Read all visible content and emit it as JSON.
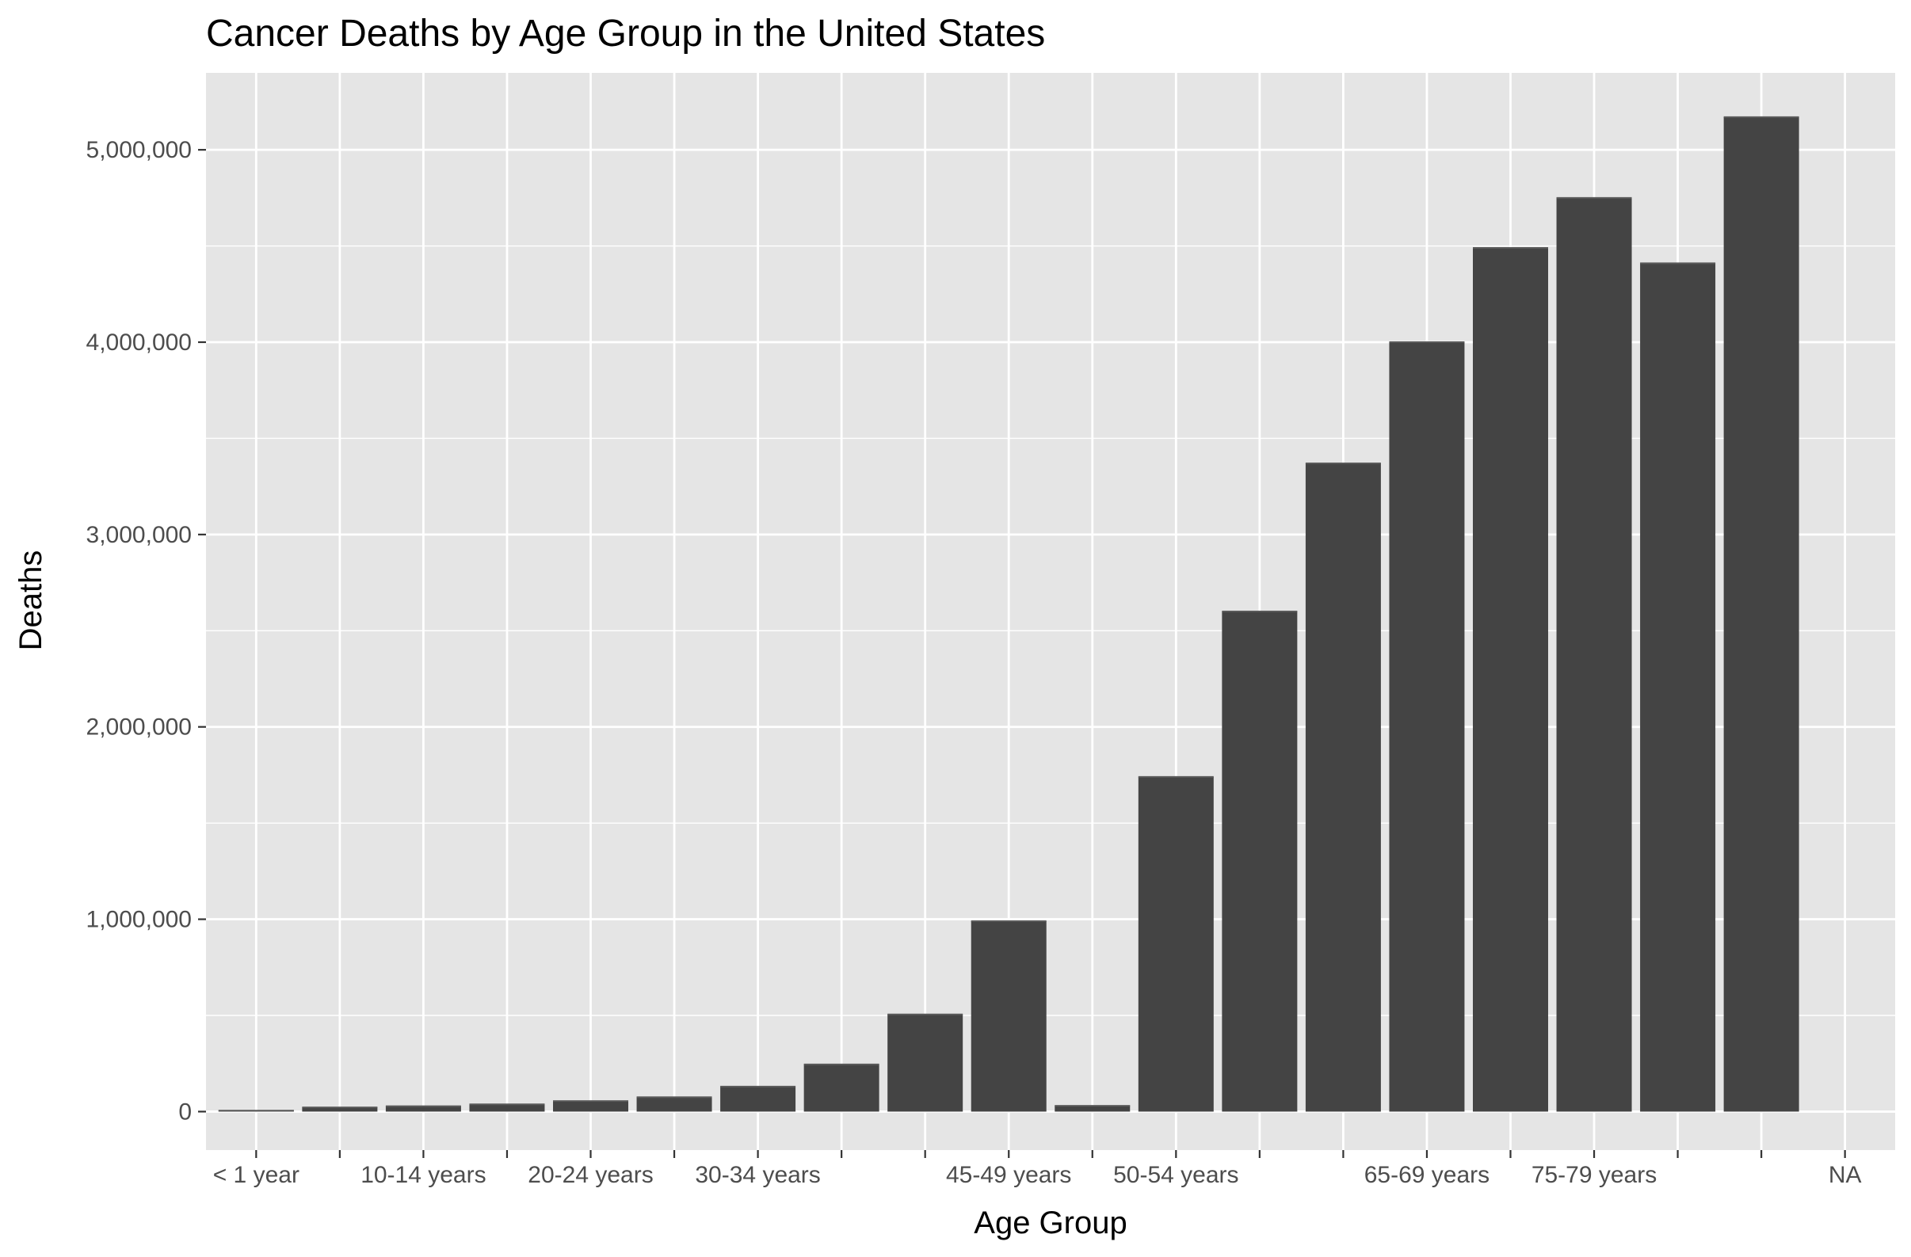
{
  "chart_data": {
    "type": "bar",
    "title": "Cancer Deaths by Age Group in the United States",
    "xlabel": "Age Group",
    "ylabel": "Deaths",
    "ylim": [
      -200000,
      5400000
    ],
    "yticks": [
      0,
      1000000,
      2000000,
      3000000,
      4000000,
      5000000
    ],
    "ytick_labels": [
      "0",
      "1,000,000",
      "2,000,000",
      "3,000,000",
      "4,000,000",
      "5,000,000"
    ],
    "categories": [
      "< 1 year",
      "",
      "10-14 years",
      "",
      "20-24 years",
      "",
      "30-34 years",
      "",
      "",
      "45-49 years",
      "",
      "50-54 years",
      "",
      "",
      "65-69 years",
      "",
      "75-79 years",
      "",
      "",
      "NA"
    ],
    "values": [
      5000,
      22000,
      28000,
      38000,
      55000,
      75000,
      130000,
      245000,
      505000,
      990000,
      30000,
      1740000,
      2600000,
      3370000,
      4000000,
      4490000,
      4750000,
      4410000,
      5170000,
      0
    ],
    "grid": true,
    "bar_color": "#444444",
    "panel_color": "#e5e5e5",
    "grid_color": "#ffffff"
  }
}
